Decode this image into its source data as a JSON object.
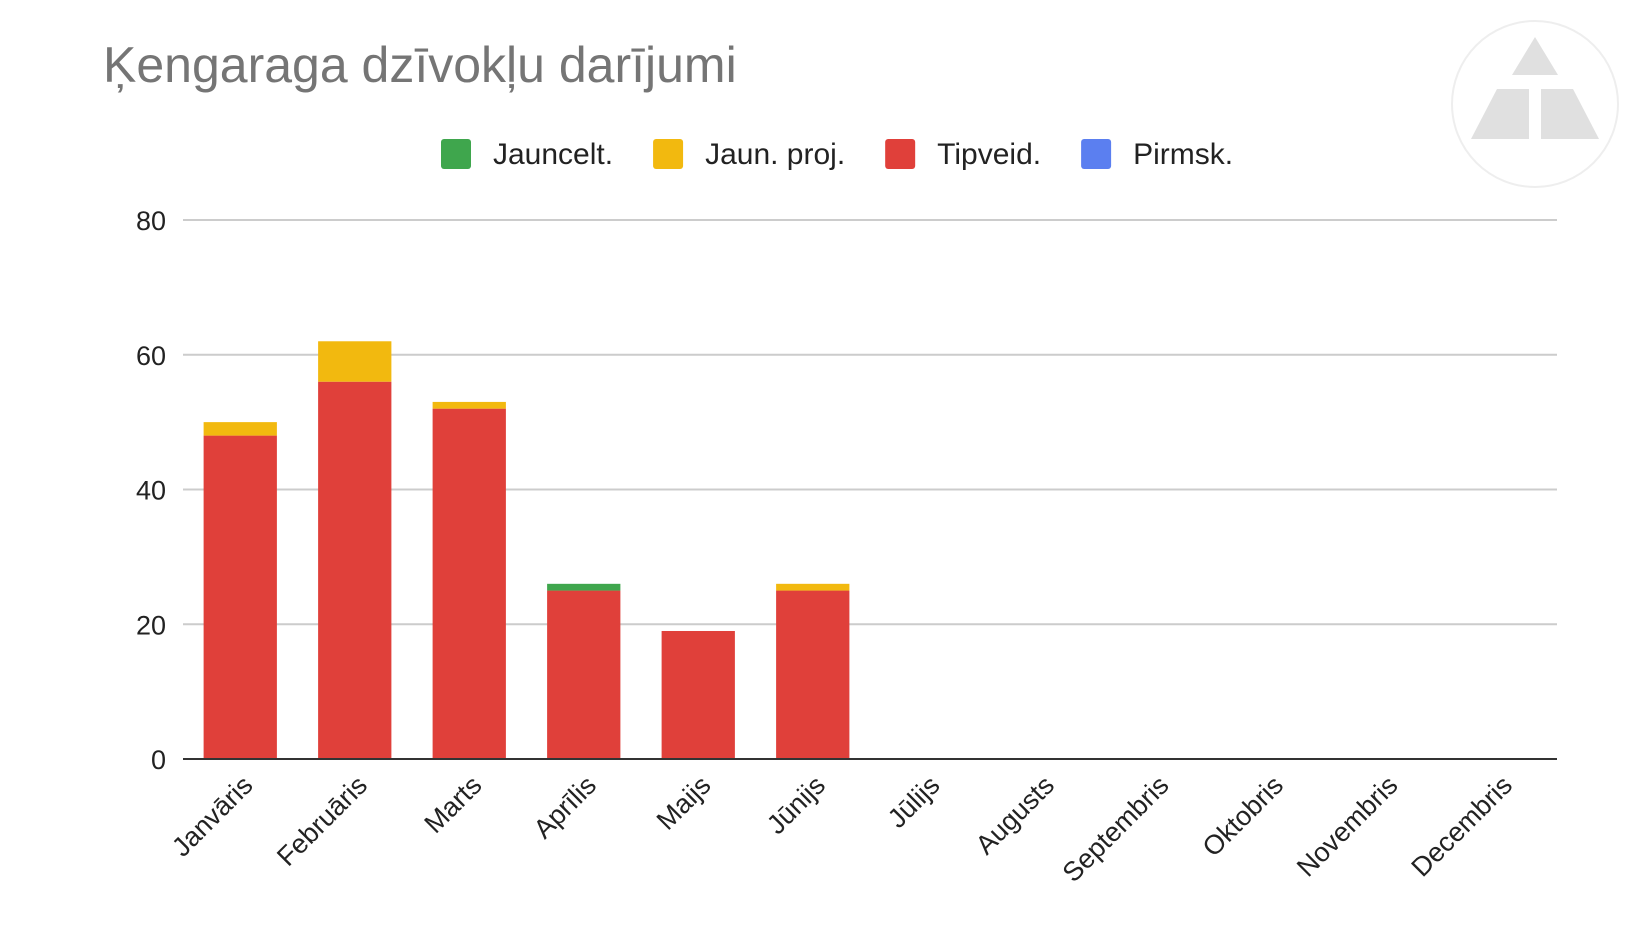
{
  "chart_data": {
    "type": "bar",
    "stacked": true,
    "title": "Ķengaraga dzīvokļu darījumi",
    "categories": [
      "Janvāris",
      "Februāris",
      "Marts",
      "Aprīlis",
      "Maijs",
      "Jūnijs",
      "Jūlijs",
      "Augusts",
      "Septembris",
      "Oktobris",
      "Novembris",
      "Decembris"
    ],
    "series": [
      {
        "name": "Tipveid.",
        "color": "#e0403a",
        "values": [
          48,
          56,
          52,
          25,
          19,
          25,
          null,
          null,
          null,
          null,
          null,
          null
        ]
      },
      {
        "name": "Jauncelt.",
        "color": "#3fa64d",
        "values": [
          0,
          0,
          0,
          1,
          0,
          0,
          null,
          null,
          null,
          null,
          null,
          null
        ]
      },
      {
        "name": "Jaun. proj.",
        "color": "#f2b90f",
        "values": [
          2,
          6,
          1,
          0,
          0,
          1,
          null,
          null,
          null,
          null,
          null,
          null
        ]
      },
      {
        "name": "Pirmsk.",
        "color": "#5b7ff0",
        "values": [
          0,
          0,
          0,
          0,
          0,
          0,
          null,
          null,
          null,
          null,
          null,
          null
        ]
      }
    ],
    "legend_order": [
      "Jauncelt.",
      "Jaun. proj.",
      "Tipveid.",
      "Pirmsk."
    ],
    "legend_position": "top",
    "xlabel": "",
    "ylabel": "",
    "ylim": [
      0,
      80
    ],
    "yticks": [
      0,
      20,
      40,
      60,
      80
    ],
    "grid": true
  },
  "logo": {
    "name": "triangle-logo-watermark",
    "color": "#e0e0e0"
  }
}
